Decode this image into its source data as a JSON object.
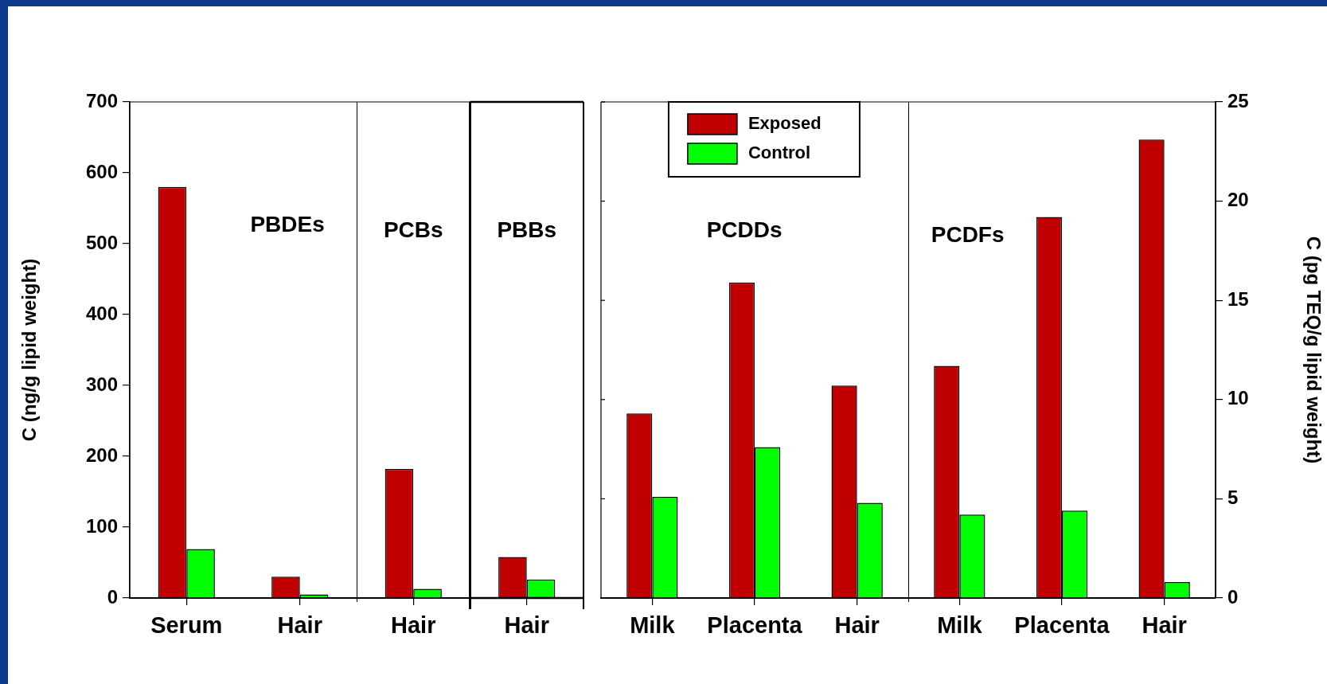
{
  "chart_data": [
    {
      "type": "bar",
      "categories": [
        "Serum",
        "Hair",
        "Hair",
        "Hair"
      ],
      "ylabel": "C (ng/g lipid weight)",
      "ylim": [
        0,
        700
      ],
      "yticks": [
        0,
        100,
        200,
        300,
        400,
        500,
        600,
        700
      ],
      "grid": false,
      "annotations": [
        "PBDEs",
        "PCBs",
        "PBBs"
      ],
      "series": [
        {
          "color": "#c00000",
          "values": [
            580,
            30,
            182,
            58
          ]
        },
        {
          "color": "#00ff00",
          "values": [
            69,
            5,
            13,
            26
          ]
        }
      ]
    },
    {
      "type": "bar",
      "categories": [
        "Milk",
        "Placenta",
        "Hair",
        "Milk",
        "Placenta",
        "Hair"
      ],
      "y2label": "C (pg TEQ/g lipid weight)",
      "y2lim": [
        0,
        25
      ],
      "y2ticks": [
        0,
        5,
        10,
        15,
        20,
        25
      ],
      "grid": false,
      "legend": "top left",
      "annotations": [
        "PCDDs",
        "PCDFs"
      ],
      "series": [
        {
          "name": "Exposed",
          "color": "#c00000",
          "axis": "y2",
          "values": [
            9.3,
            15.9,
            10.7,
            11.7,
            19.2,
            23.1
          ]
        },
        {
          "name": "Control",
          "color": "#00ff00",
          "axis": "y2",
          "values": [
            5.1,
            7.6,
            4.8,
            4.2,
            4.4,
            0.8
          ]
        }
      ]
    }
  ]
}
